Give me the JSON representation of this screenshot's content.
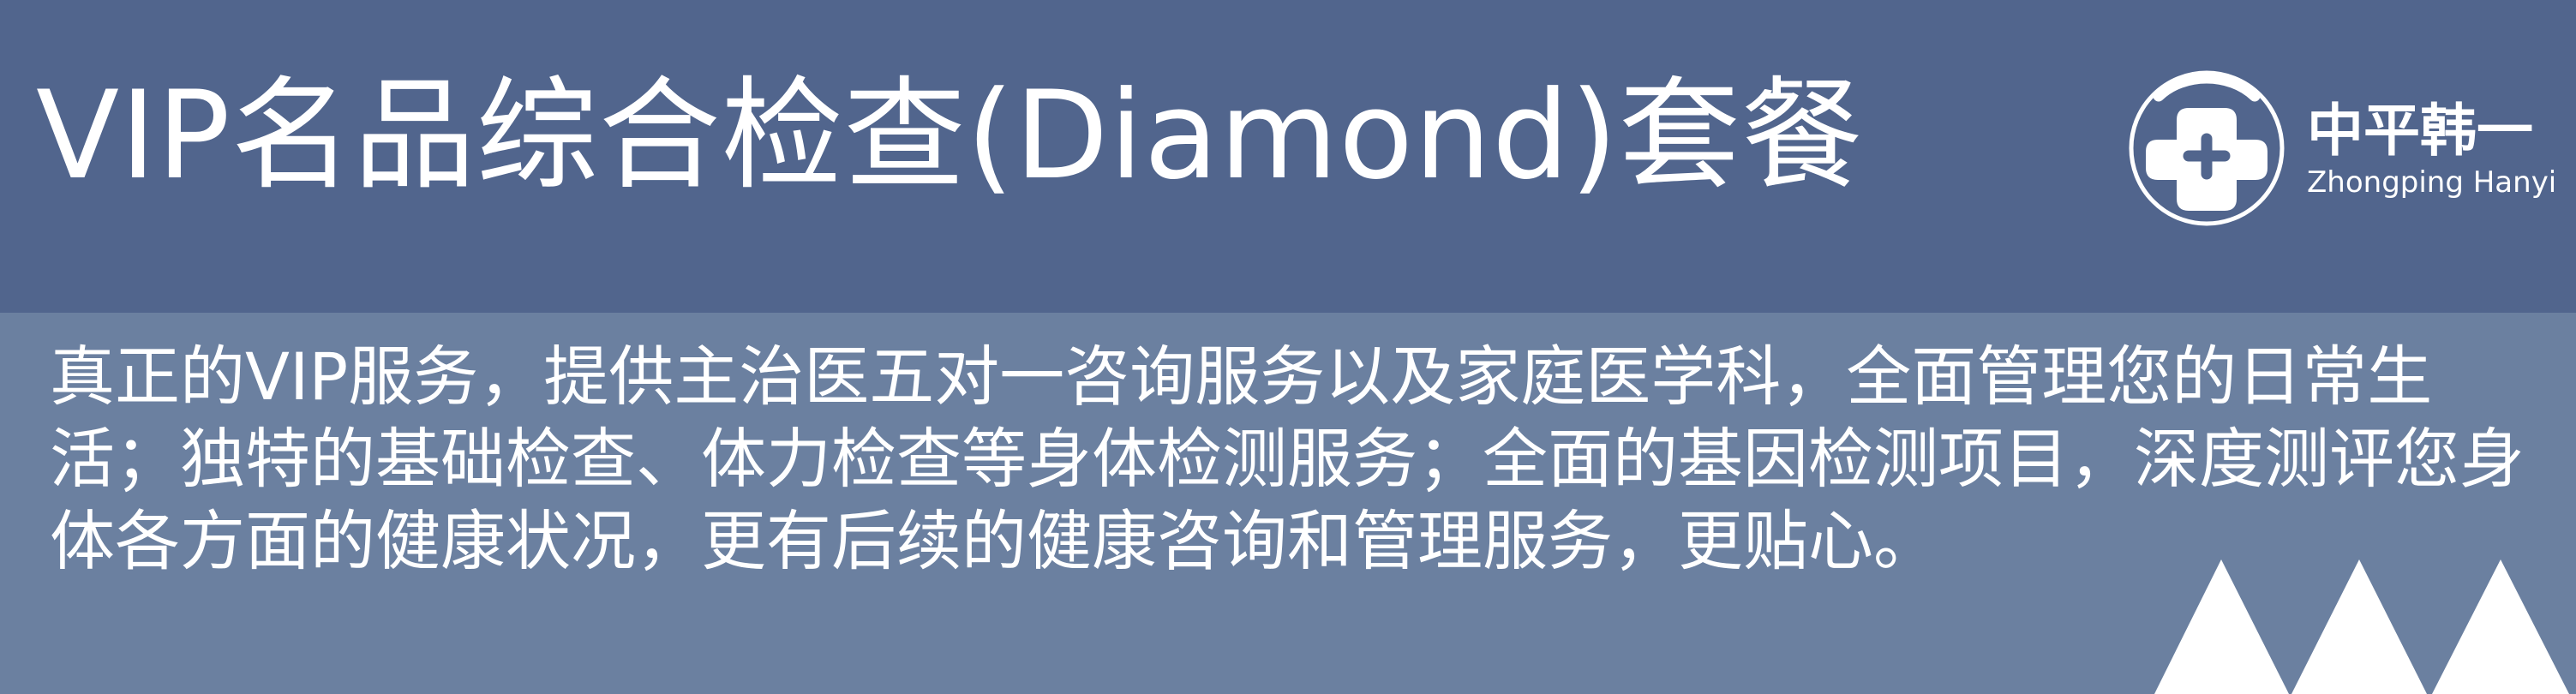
{
  "title": "VIP名品综合检查(Diamond)套餐",
  "logo": {
    "name_cn": "中平韩一",
    "name_en": "Zhongping Hanyi",
    "icon": "medical-cross-icon"
  },
  "description": "真正的VIP服务，提供主治医五对一咨询服务以及家庭医学科，全面管理您的日常生活；独特的基础检查、体力检查等身体检测服务；全面的基因检测项目，深度测评您身体各方面的健康状况，更有后续的健康咨询和管理服务，更贴心。",
  "colors": {
    "header_background": "#51658d",
    "body_background": "#6b80a0",
    "text": "#ffffff"
  }
}
